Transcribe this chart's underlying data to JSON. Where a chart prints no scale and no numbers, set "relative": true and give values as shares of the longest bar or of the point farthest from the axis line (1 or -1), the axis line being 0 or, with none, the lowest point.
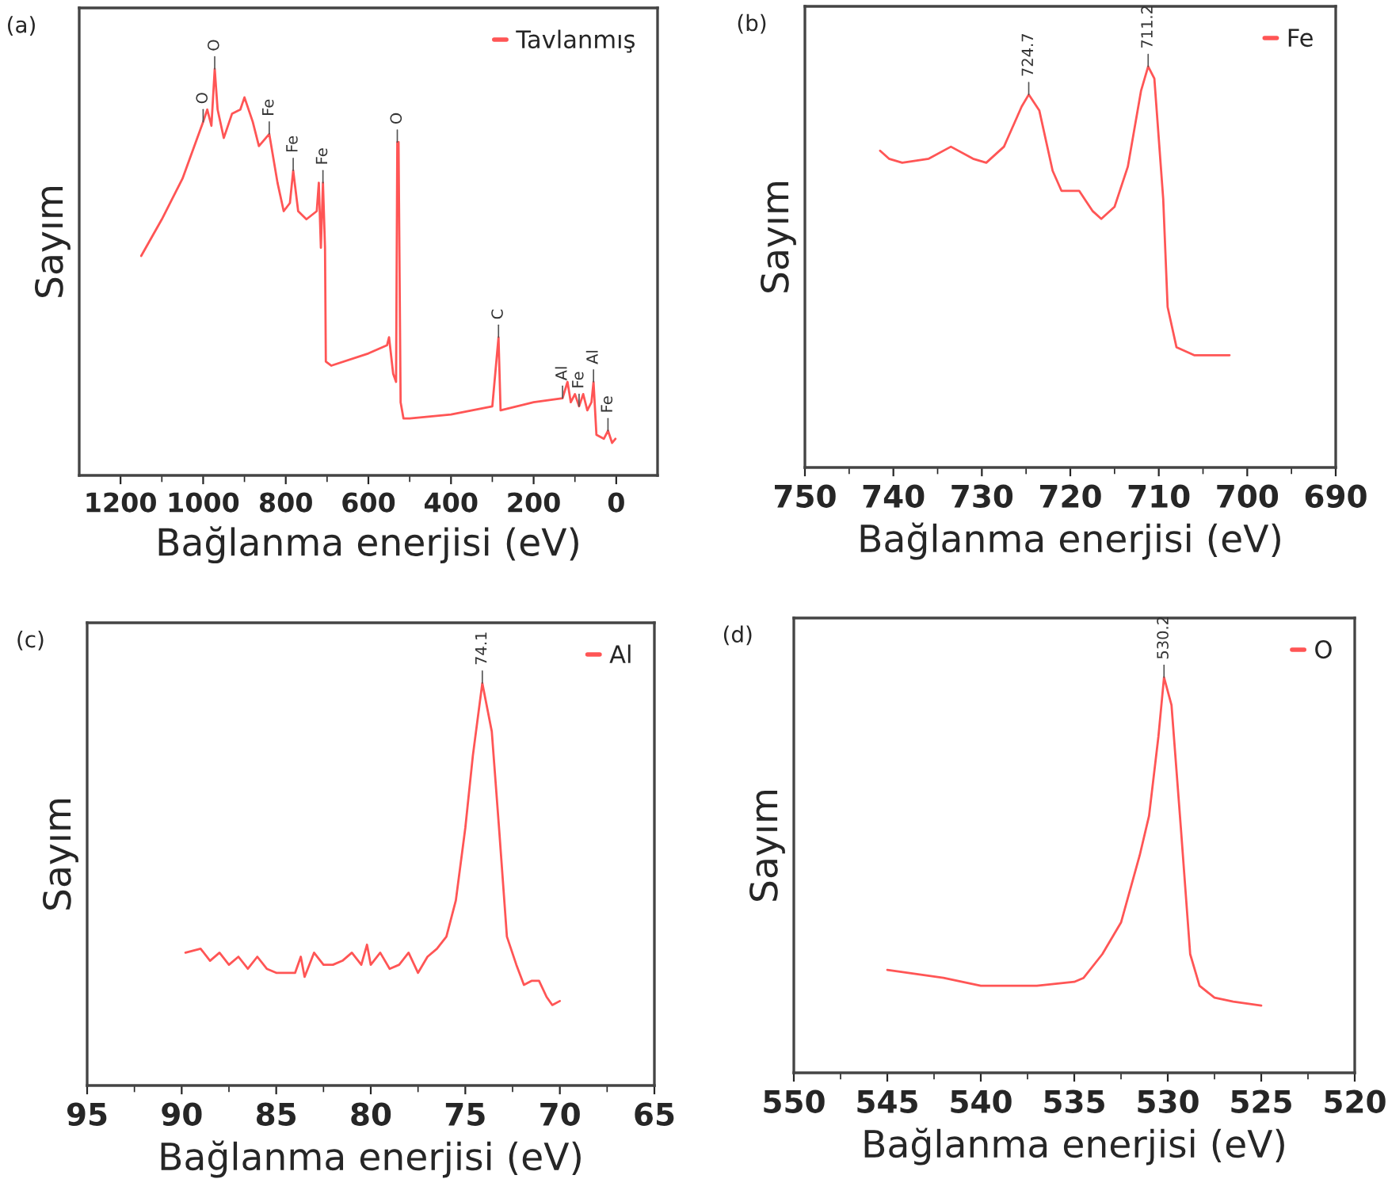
{
  "chart_data": [
    {
      "type": "line",
      "relative": true,
      "xlabel": "Bağlanma enerjisi (eV)",
      "ylabel": "Sayım",
      "xlim": [
        1300,
        -100
      ],
      "xticks": [
        1200,
        1000,
        800,
        600,
        400,
        200,
        0
      ],
      "legend": "top right",
      "series": [
        {
          "name": "Tavlanmış",
          "color": "#ff5555",
          "x": [
            1150,
            1100,
            1050,
            1000,
            990,
            980,
            972,
            965,
            950,
            930,
            910,
            900,
            880,
            865,
            840,
            820,
            805,
            790,
            782,
            770,
            750,
            725,
            720,
            715,
            710,
            705,
            703,
            690,
            600,
            555,
            550,
            540,
            533,
            530,
            527,
            522,
            515,
            500,
            400,
            300,
            285,
            280,
            200,
            130,
            118,
            110,
            100,
            90,
            80,
            70,
            60,
            55,
            48,
            30,
            20,
            10,
            2
          ],
          "values": [
            0.54,
            0.63,
            0.73,
            0.87,
            0.9,
            0.86,
            1.0,
            0.9,
            0.83,
            0.89,
            0.9,
            0.93,
            0.87,
            0.81,
            0.84,
            0.72,
            0.65,
            0.67,
            0.75,
            0.65,
            0.63,
            0.65,
            0.72,
            0.56,
            0.72,
            0.56,
            0.28,
            0.27,
            0.3,
            0.32,
            0.34,
            0.25,
            0.23,
            0.82,
            0.82,
            0.18,
            0.14,
            0.14,
            0.15,
            0.17,
            0.34,
            0.16,
            0.18,
            0.19,
            0.23,
            0.18,
            0.2,
            0.17,
            0.2,
            0.16,
            0.18,
            0.23,
            0.1,
            0.09,
            0.11,
            0.08,
            0.09
          ]
        }
      ],
      "annotations": [
        "(a)",
        {
          "text": "O",
          "x": 1000,
          "y": 0.87
        },
        {
          "text": "O",
          "x": 972,
          "y": 1.0
        },
        {
          "text": "Fe",
          "x": 840,
          "y": 0.84
        },
        {
          "text": "Fe",
          "x": 782,
          "y": 0.75
        },
        {
          "text": "Fe",
          "x": 710,
          "y": 0.72
        },
        {
          "text": "O",
          "x": 530,
          "y": 0.82
        },
        {
          "text": "C",
          "x": 285,
          "y": 0.34
        },
        {
          "text": "Al",
          "x": 130,
          "y": 0.19
        },
        {
          "text": "Fe",
          "x": 90,
          "y": 0.17
        },
        {
          "text": "Al",
          "x": 55,
          "y": 0.23
        },
        {
          "text": "Fe",
          "x": 20,
          "y": 0.11
        }
      ]
    },
    {
      "type": "line",
      "relative": true,
      "xlabel": "Bağlanma enerjisi (eV)",
      "ylabel": "Sayım",
      "xlim": [
        750,
        690
      ],
      "xticks": [
        750,
        740,
        730,
        720,
        710,
        700,
        690
      ],
      "legend": "top right",
      "series": [
        {
          "name": "Fe",
          "color": "#ff5555",
          "x": [
            741.5,
            740.5,
            739,
            736,
            733.5,
            731,
            729.5,
            727.5,
            725.5,
            724.7,
            723.5,
            722,
            721,
            719,
            717.5,
            716.5,
            715,
            713.5,
            712,
            711.2,
            710.5,
            709.5,
            709,
            708,
            706,
            704,
            702
          ],
          "values": [
            0.79,
            0.77,
            0.76,
            0.77,
            0.8,
            0.77,
            0.76,
            0.8,
            0.9,
            0.93,
            0.89,
            0.74,
            0.69,
            0.69,
            0.64,
            0.62,
            0.65,
            0.75,
            0.94,
            1.0,
            0.97,
            0.67,
            0.4,
            0.3,
            0.28,
            0.28,
            0.28
          ]
        }
      ],
      "annotations": [
        "(b)",
        {
          "text": "724.7",
          "x": 724.7,
          "y": 0.93
        },
        {
          "text": "711.2",
          "x": 711.2,
          "y": 1.0
        }
      ]
    },
    {
      "type": "line",
      "relative": true,
      "xlabel": "Bağlanma enerjisi (eV)",
      "ylabel": "Sayım",
      "xlim": [
        95,
        65
      ],
      "xticks": [
        95,
        90,
        85,
        80,
        75,
        70,
        65
      ],
      "legend": "top right",
      "series": [
        {
          "name": "Al",
          "color": "#ff5555",
          "x": [
            89.8,
            89,
            88.5,
            88,
            87.5,
            87,
            86.5,
            86,
            85.5,
            85,
            84,
            83.7,
            83.5,
            83,
            82.5,
            82,
            81.5,
            81,
            80.5,
            80.2,
            80,
            79.5,
            79,
            78.5,
            78,
            77.5,
            77,
            76.5,
            76,
            75.5,
            75,
            74.6,
            74.1,
            73.6,
            73.2,
            72.8,
            72.3,
            71.9,
            71.5,
            71.1,
            70.7,
            70.4,
            70
          ],
          "values": [
            0.33,
            0.34,
            0.31,
            0.33,
            0.3,
            0.32,
            0.29,
            0.32,
            0.29,
            0.28,
            0.28,
            0.32,
            0.27,
            0.33,
            0.3,
            0.3,
            0.31,
            0.33,
            0.3,
            0.35,
            0.3,
            0.33,
            0.29,
            0.3,
            0.33,
            0.28,
            0.32,
            0.34,
            0.37,
            0.46,
            0.64,
            0.82,
            1.0,
            0.88,
            0.63,
            0.37,
            0.3,
            0.25,
            0.26,
            0.26,
            0.22,
            0.2,
            0.21
          ]
        }
      ],
      "annotations": [
        "(c)",
        {
          "text": "74.1",
          "x": 74.1,
          "y": 1.0
        }
      ]
    },
    {
      "type": "line",
      "relative": true,
      "xlabel": "Bağlanma enerjisi (eV)",
      "ylabel": "Sayım",
      "xlim": [
        550,
        520
      ],
      "xticks": [
        550,
        545,
        540,
        535,
        530,
        525,
        520
      ],
      "legend": "top right",
      "series": [
        {
          "name": "O",
          "color": "#ff5555",
          "x": [
            545,
            542,
            540,
            537,
            535,
            534.5,
            533.5,
            532.5,
            531.5,
            531,
            530.5,
            530.2,
            529.8,
            529.3,
            528.8,
            528.3,
            527.5,
            526.5,
            525
          ],
          "values": [
            0.26,
            0.24,
            0.22,
            0.22,
            0.23,
            0.24,
            0.3,
            0.38,
            0.55,
            0.65,
            0.85,
            1.0,
            0.93,
            0.62,
            0.3,
            0.22,
            0.19,
            0.18,
            0.17
          ]
        }
      ],
      "annotations": [
        "(d)",
        {
          "text": "530.2",
          "x": 530.2,
          "y": 1.0
        }
      ]
    }
  ]
}
